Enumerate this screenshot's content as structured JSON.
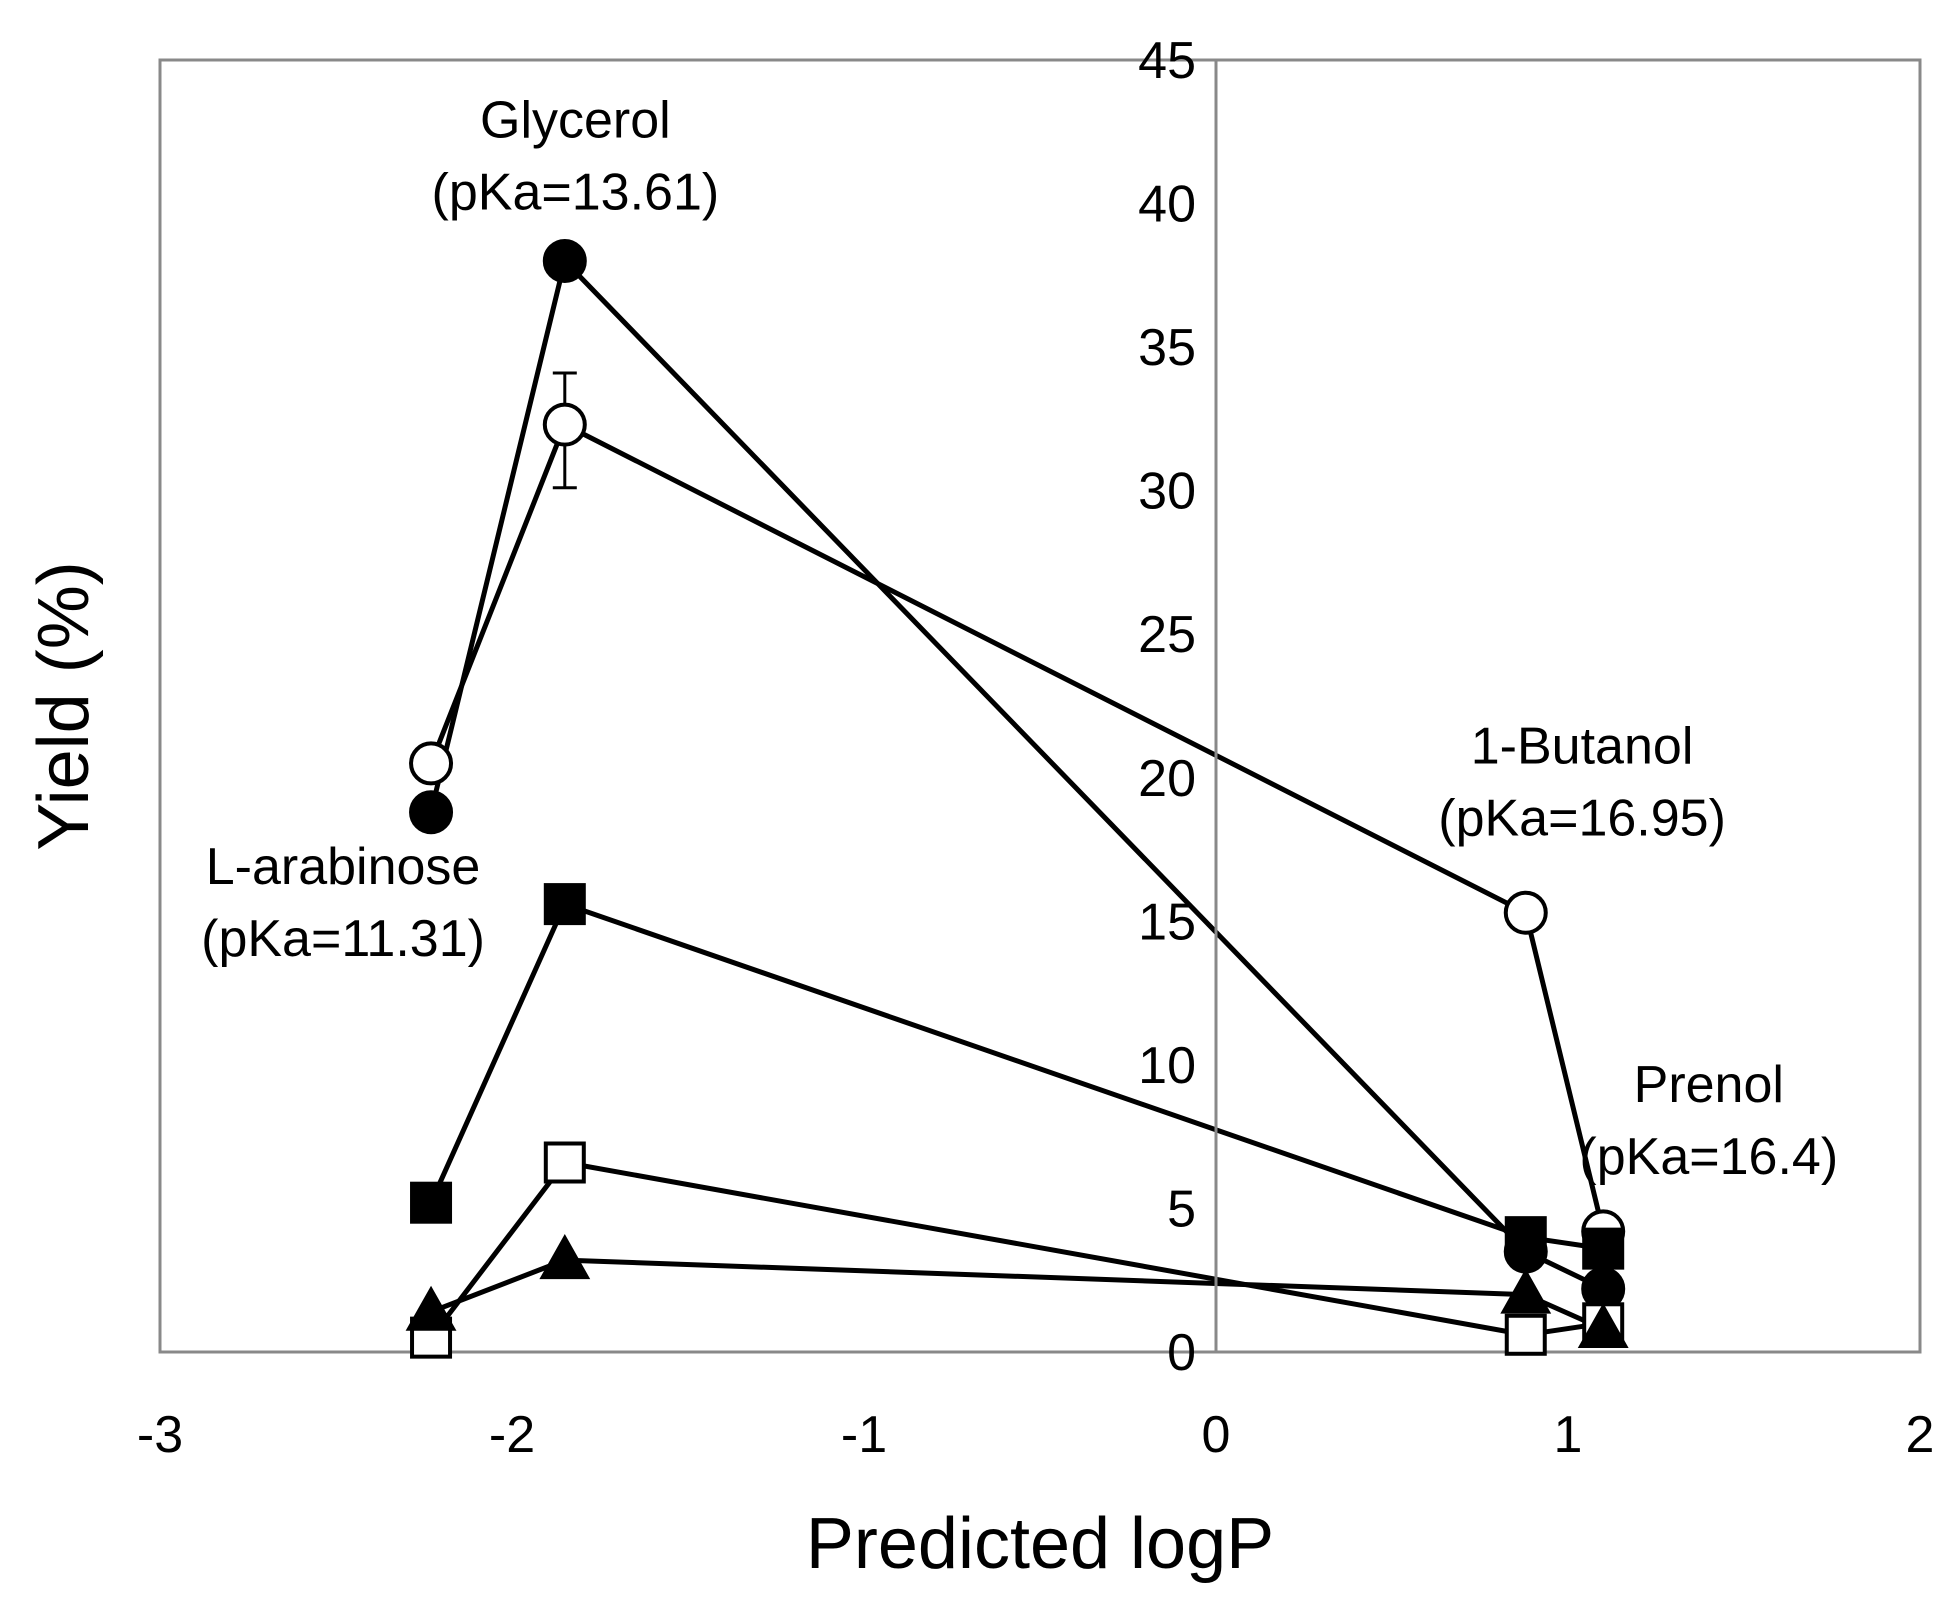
{
  "chart_data": {
    "type": "scatter",
    "title": "",
    "xlabel": "Predicted logP",
    "ylabel": "Yield (%)",
    "xlim": [
      -3,
      2
    ],
    "ylim": [
      0,
      45
    ],
    "xticks": [
      "-3",
      "-2",
      "-1",
      "0",
      "1",
      "2"
    ],
    "yticks": [
      "0",
      "5",
      "10",
      "15",
      "20",
      "25",
      "30",
      "35",
      "40",
      "45"
    ],
    "grid": false,
    "legend": "none",
    "series": [
      {
        "name": "filled-circle",
        "marker": "circle",
        "fill": "#000000",
        "points": [
          [
            -2.23,
            18.8
          ],
          [
            -1.85,
            38.0
          ],
          [
            0.88,
            3.5
          ],
          [
            1.1,
            2.2
          ]
        ]
      },
      {
        "name": "open-circle",
        "marker": "circle",
        "fill": "#ffffff",
        "points": [
          [
            -2.23,
            20.5
          ],
          [
            -1.85,
            32.3
          ],
          [
            0.88,
            15.3
          ],
          [
            1.1,
            4.2
          ]
        ],
        "error_bars": [
          {
            "x": -1.85,
            "y": 32.3,
            "low": 30.1,
            "high": 34.1
          }
        ]
      },
      {
        "name": "filled-square",
        "marker": "square",
        "fill": "#000000",
        "points": [
          [
            -2.23,
            5.2
          ],
          [
            -1.85,
            15.6
          ],
          [
            0.88,
            4.0
          ],
          [
            1.1,
            3.6
          ]
        ]
      },
      {
        "name": "open-square",
        "marker": "square",
        "fill": "#ffffff",
        "points": [
          [
            -2.23,
            0.5
          ],
          [
            -1.85,
            6.6
          ],
          [
            0.88,
            0.6
          ],
          [
            1.1,
            1.0
          ]
        ]
      },
      {
        "name": "filled-triangle",
        "marker": "triangle",
        "fill": "#000000",
        "points": [
          [
            -2.23,
            1.4
          ],
          [
            -1.85,
            3.2
          ],
          [
            0.88,
            2.0
          ],
          [
            1.1,
            0.8
          ]
        ]
      }
    ],
    "annotations": [
      {
        "name": "glycerol-label",
        "lines": [
          "Glycerol",
          "(pKa=13.61)"
        ],
        "x": -1.82,
        "y": 42.3
      },
      {
        "name": "butanol-label",
        "lines": [
          "1-Butanol",
          "(pKa=16.95)"
        ],
        "x": 1.04,
        "y": 20.5
      },
      {
        "name": "arabinose-label",
        "lines": [
          "L-arabinose",
          "(pKa=11.31)"
        ],
        "x": -2.48,
        "y": 16.3
      },
      {
        "name": "prenol-label",
        "lines": [
          "Prenol",
          "(pKa=16.4)"
        ],
        "x": 1.4,
        "y": 8.7
      }
    ]
  }
}
